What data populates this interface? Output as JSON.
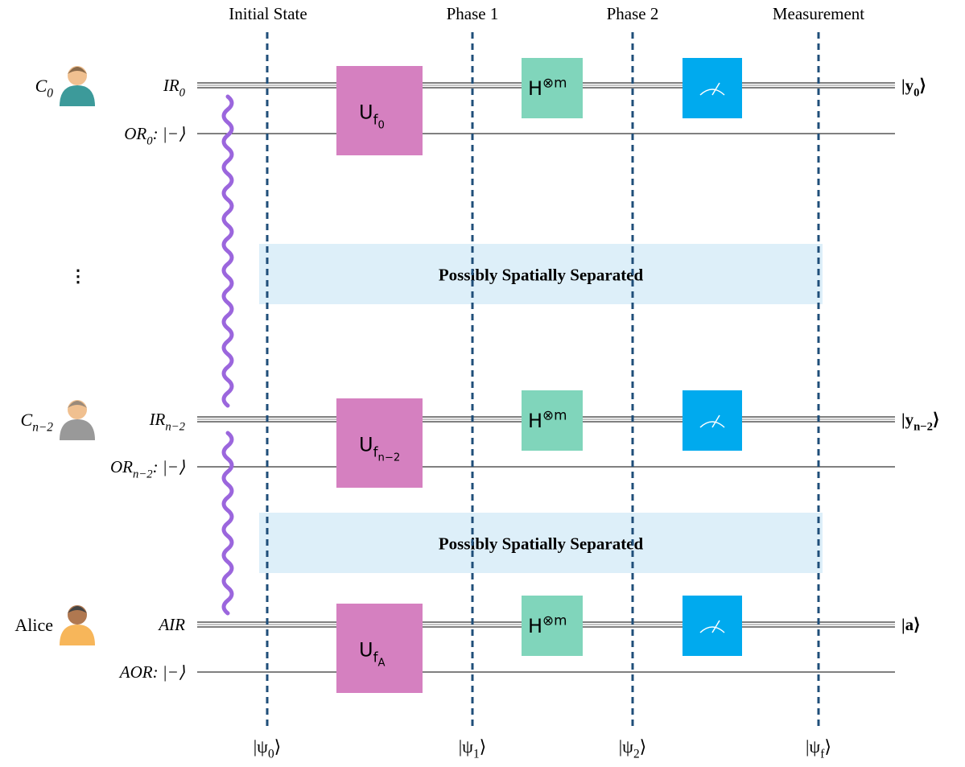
{
  "phases": [
    "Initial State",
    "Phase 1",
    "Phase 2",
    "Measurement"
  ],
  "states": [
    {
      "text": "|ψ",
      "sub": "0",
      "suffix": "⟩"
    },
    {
      "text": "|ψ",
      "sub": "1",
      "suffix": "⟩"
    },
    {
      "text": "|ψ",
      "sub": "2",
      "suffix": "⟩"
    },
    {
      "text": "|ψ",
      "sub": "f",
      "suffix": "⟩"
    }
  ],
  "parties": [
    {
      "name": {
        "text": "C",
        "sub": "0"
      },
      "input": {
        "text": "IR",
        "sub": "0"
      },
      "output_register": {
        "text": "OR",
        "sub": "0",
        "suffix": ":  |−⟩"
      },
      "oracle": {
        "text": "U",
        "sub": "f",
        "subsub": "0"
      },
      "hadamard": {
        "text": "H",
        "sup": "⊗m"
      },
      "result": {
        "text": "|y",
        "sub": "0",
        "suffix": "⟩"
      }
    },
    {
      "name": {
        "text": "C",
        "sub": "n−2"
      },
      "input": {
        "text": "IR",
        "sub": "n−2"
      },
      "output_register": {
        "text": "OR",
        "sub": "n−2",
        "suffix": ":  |−⟩"
      },
      "oracle": {
        "text": "U",
        "sub": "f",
        "subsub": "n−2"
      },
      "hadamard": {
        "text": "H",
        "sup": "⊗m"
      },
      "result": {
        "text": "|y",
        "sub": "n−2",
        "suffix": "⟩"
      }
    },
    {
      "name": {
        "text": "Alice"
      },
      "input": {
        "text": "AIR"
      },
      "output_register": {
        "text": "AOR",
        "suffix": ":  |−⟩"
      },
      "oracle": {
        "text": "U",
        "sub": "f",
        "subsub": "A"
      },
      "hadamard": {
        "text": "H",
        "sup": "⊗m"
      },
      "result": {
        "text": "|a⟩"
      }
    }
  ],
  "ellipsis": "⋮",
  "separators": [
    "Possibly Spatially Separated",
    "Possibly Spatially Separated"
  ]
}
